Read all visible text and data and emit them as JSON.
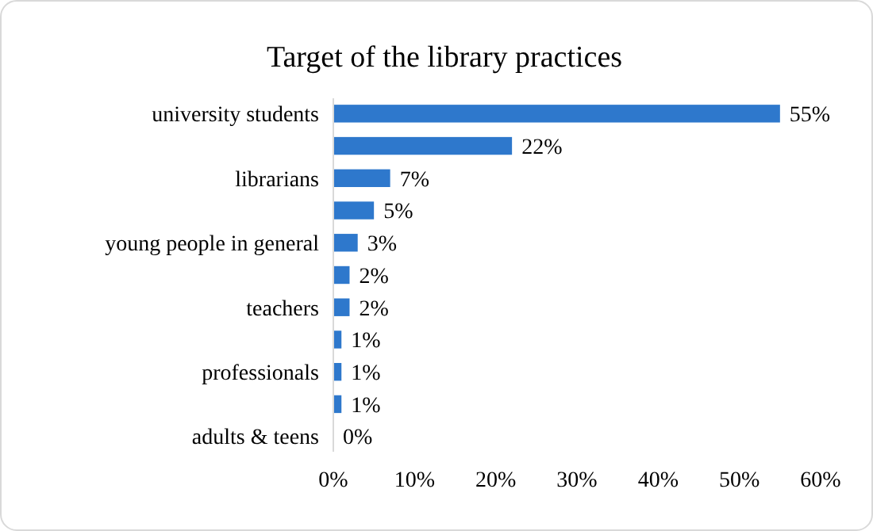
{
  "chart_data": {
    "type": "bar",
    "orientation": "horizontal",
    "title": "Target of the library practices",
    "categories": [
      "university students",
      null,
      "librarians",
      null,
      "young people in general",
      null,
      "teachers",
      null,
      "professionals",
      null,
      "adults & teens"
    ],
    "values": [
      55,
      22,
      7,
      5,
      3,
      2,
      2,
      1,
      1,
      1,
      0
    ],
    "value_labels": [
      "55%",
      "22%",
      "7%",
      "5%",
      "3%",
      "2%",
      "2%",
      "1%",
      "1%",
      "1%",
      "0%"
    ],
    "color": "#2e78cc",
    "xlim": [
      0,
      60
    ],
    "xticks": [
      {
        "value": 0,
        "label": "0%"
      },
      {
        "value": 10,
        "label": "10%"
      },
      {
        "value": 20,
        "label": "20%"
      },
      {
        "value": 30,
        "label": "30%"
      },
      {
        "value": 40,
        "label": "40%"
      },
      {
        "value": 50,
        "label": "50%"
      },
      {
        "value": 60,
        "label": "60%"
      }
    ],
    "grid": false
  }
}
